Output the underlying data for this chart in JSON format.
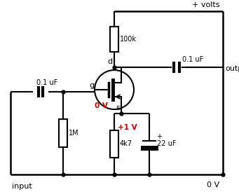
{
  "bg_color": "#ffffff",
  "line_color": "#000000",
  "red_color": "#cc0000",
  "labels": {
    "volts": "+ volts",
    "input": "input",
    "output": "output",
    "zero_v_bot": "0 V",
    "zero_v_gate": "0 V",
    "plus1v": "+1 V",
    "r1": "100k",
    "r2": "1M",
    "r3": "4k7",
    "c1": "0.1 uF",
    "c2": "0.1 uF",
    "c3": "22 uF",
    "d_label": "d",
    "g_label": "g",
    "s_label": "s"
  },
  "figsize": [
    3.41,
    2.74
  ],
  "dpi": 100
}
